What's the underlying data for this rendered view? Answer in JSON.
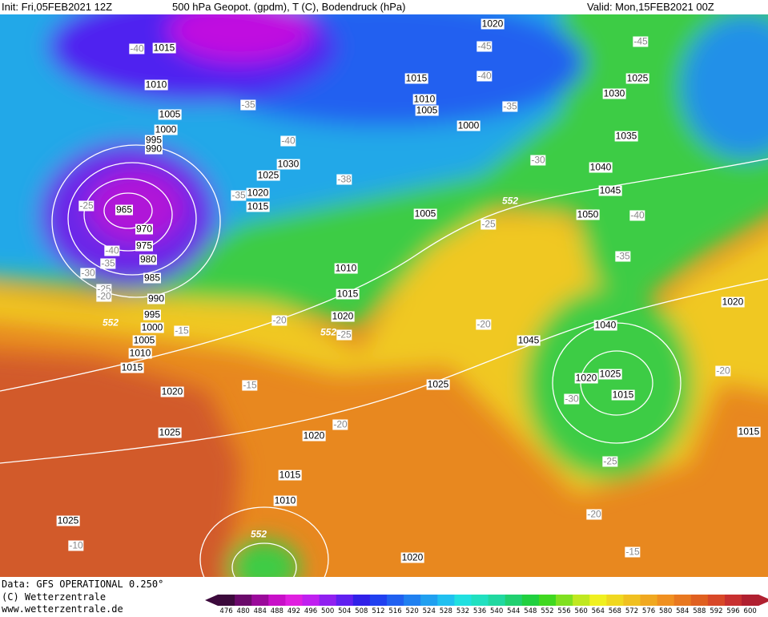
{
  "header": {
    "init": "Init: Fri,05FEB2021 12Z",
    "title": "500 hPa Geopot. (gpdm), T (C), Bodendruck (hPa)",
    "valid": "Valid: Mon,15FEB2021 00Z"
  },
  "footer": {
    "data": "Data: GFS OPERATIONAL 0.250°",
    "copyright": "(C) Wetterzentrale",
    "url": "www.wetterzentrale.de"
  },
  "legend": {
    "labels": [
      "476",
      "480",
      "484",
      "488",
      "492",
      "496",
      "500",
      "504",
      "508",
      "512",
      "516",
      "520",
      "524",
      "528",
      "532",
      "536",
      "540",
      "544",
      "548",
      "552",
      "556",
      "560",
      "564",
      "568",
      "572",
      "576",
      "580",
      "584",
      "588",
      "592",
      "596",
      "600"
    ],
    "colors": [
      "#3c0a3c",
      "#6a0a6a",
      "#9a0a9a",
      "#c810c8",
      "#e020e0",
      "#c020f0",
      "#9020f0",
      "#6020f0",
      "#3020e8",
      "#2040f0",
      "#2060f0",
      "#2080f0",
      "#20a0f0",
      "#20c0f0",
      "#20e0e0",
      "#20e0c0",
      "#20d8a0",
      "#20d070",
      "#20d040",
      "#40d820",
      "#80e020",
      "#c0e820",
      "#f0f020",
      "#f0d820",
      "#f0c020",
      "#f0a820",
      "#f09020",
      "#e87820",
      "#e06020",
      "#d84828",
      "#c83030",
      "#b02030"
    ]
  },
  "map": {
    "pressure_labels": [
      "1015",
      "1010",
      "1005",
      "1000",
      "995",
      "990",
      "965",
      "970",
      "975",
      "980",
      "985",
      "990",
      "995",
      "1000",
      "1005",
      "1010",
      "1015",
      "1020",
      "1025",
      "1025",
      "1030",
      "1025",
      "1020",
      "1015",
      "1020",
      "1015",
      "1010",
      "1005",
      "1000",
      "1005",
      "1010",
      "1015",
      "1020",
      "1025",
      "1020",
      "1015",
      "1010",
      "1020",
      "1045",
      "1040",
      "1025",
      "1020",
      "1015",
      "1030",
      "1035",
      "1040",
      "1045",
      "1050",
      "1025",
      "1020",
      "1015"
    ],
    "temperature_labels": [
      "-40",
      "-45",
      "-45",
      "-40",
      "-35",
      "-35",
      "-40",
      "-30",
      "-38",
      "-35",
      "-25",
      "-25",
      "-40",
      "-35",
      "-40",
      "-35",
      "-30",
      "-25",
      "-20",
      "-20",
      "-25",
      "-15",
      "-20",
      "-30",
      "-15",
      "-20",
      "-25",
      "-20",
      "-20",
      "-15",
      "-10"
    ],
    "geopotential_labels": [
      "552",
      "552",
      "552",
      "552"
    ]
  }
}
